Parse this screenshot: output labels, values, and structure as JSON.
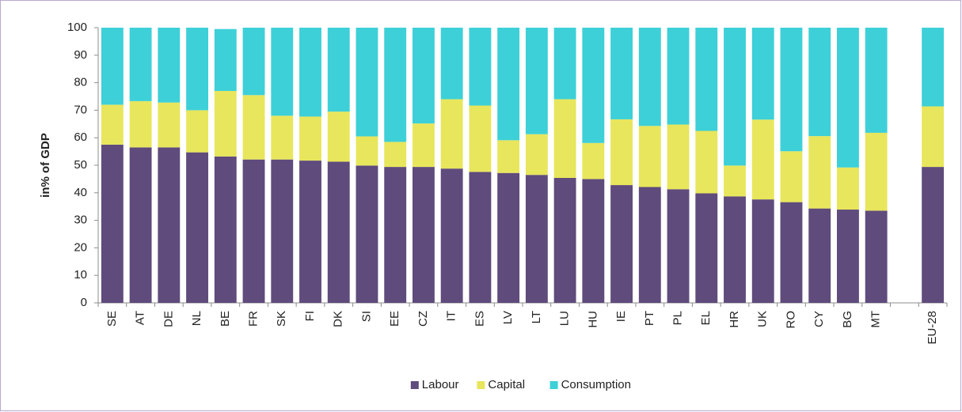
{
  "chart_data": {
    "type": "stacked_bar",
    "y_label": "in% of GDP",
    "categories": [
      "SE",
      "AT",
      "DE",
      "NL",
      "BE",
      "FR",
      "SK",
      "FI",
      "DK",
      "SI",
      "EE",
      "CZ",
      "IT",
      "ES",
      "LV",
      "LT",
      "LU",
      "HU",
      "IE",
      "PT",
      "PL",
      "EL",
      "HR",
      "UK",
      "RO",
      "CY",
      "BG",
      "MT",
      null,
      "EU-28"
    ],
    "series": [
      {
        "name": "Labour",
        "color": "#5f4b7c",
        "values": [
          57.5,
          56.5,
          56.5,
          54.7,
          53.2,
          52.1,
          52.1,
          51.7,
          51.3,
          49.9,
          49.4,
          49.4,
          48.8,
          47.6,
          47.2,
          46.5,
          45.4,
          45.0,
          42.8,
          42.1,
          41.3,
          39.8,
          38.7,
          37.6,
          36.6,
          34.3,
          33.9,
          33.5,
          null,
          49.4
        ]
      },
      {
        "name": "Capital",
        "color": "#e8e65c",
        "values": [
          14.5,
          16.8,
          16.3,
          15.3,
          23.8,
          23.4,
          15.9,
          16.0,
          18.2,
          10.6,
          9.1,
          15.8,
          25.2,
          24.1,
          11.9,
          14.8,
          28.6,
          13.1,
          23.9,
          22.2,
          23.5,
          22.7,
          11.2,
          29.0,
          18.5,
          26.3,
          15.3,
          28.3,
          null,
          22.0
        ]
      },
      {
        "name": "Consumption",
        "color": "#3dd0d8",
        "values": [
          28.0,
          26.7,
          27.2,
          30.0,
          22.5,
          24.5,
          32.0,
          32.3,
          30.5,
          39.5,
          41.5,
          34.8,
          26.0,
          28.3,
          40.9,
          38.7,
          26.0,
          41.9,
          33.3,
          35.7,
          35.2,
          37.5,
          50.1,
          33.4,
          44.9,
          39.4,
          50.8,
          38.2,
          null,
          28.6
        ]
      }
    ],
    "ylim": [
      0,
      100
    ],
    "yticks": [
      0,
      10,
      20,
      30,
      40,
      50,
      60,
      70,
      80,
      90,
      100
    ],
    "legend": "bottom"
  }
}
